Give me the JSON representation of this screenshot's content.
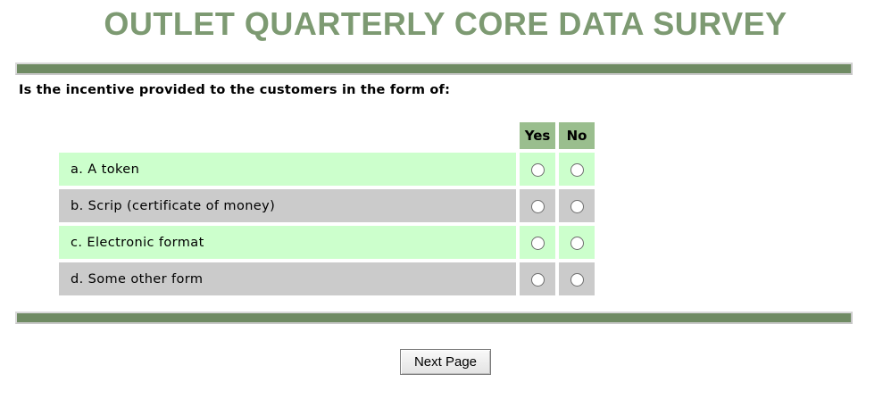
{
  "page": {
    "title": "OUTLET QUARTERLY CORE DATA SURVEY",
    "question": "Is the incentive provided to the customers in the form of:"
  },
  "survey_table": {
    "columns": [
      "Yes",
      "No"
    ],
    "rows": [
      {
        "label": "a. A token",
        "selected": null
      },
      {
        "label": "b. Scrip (certificate of money)",
        "selected": null
      },
      {
        "label": "c. Electronic format",
        "selected": null
      },
      {
        "label": "d. Some other form",
        "selected": null
      }
    ]
  },
  "footer": {
    "next_button_label": "Next Page"
  },
  "colors": {
    "title_green": "#7d9a72",
    "divider_bar_green": "#6f8b63",
    "header_cell_green": "#9abe8e",
    "row_light_green": "#ccffcc",
    "row_gray": "#cbcbcb"
  }
}
